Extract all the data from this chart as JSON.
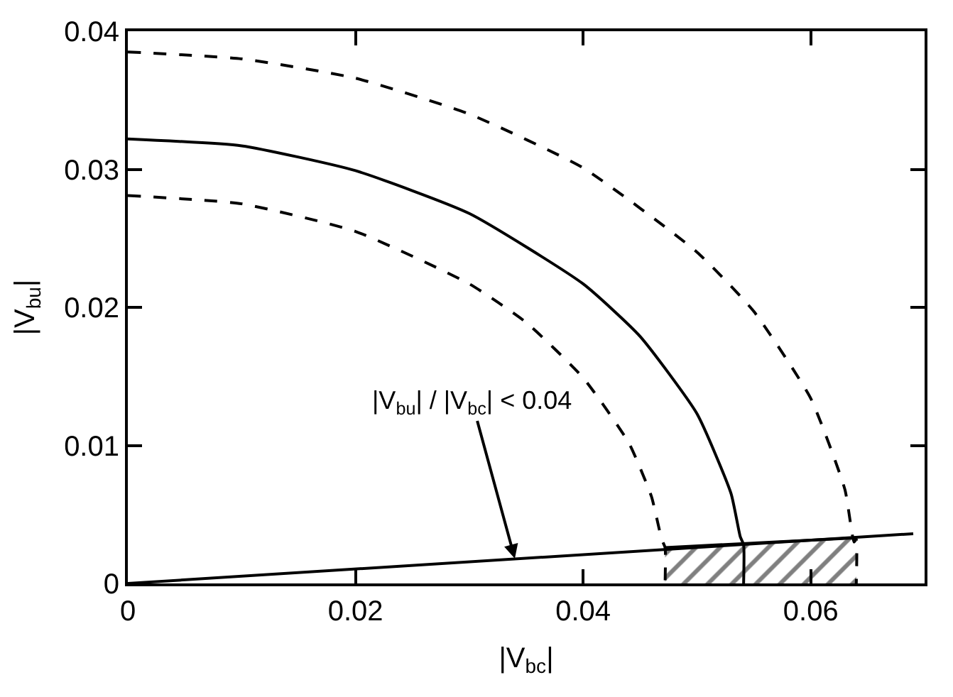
{
  "chart_data": {
    "type": "line",
    "xlabel": "|V$_{bc}$|",
    "ylabel": "|V$_{bu}$|",
    "xlim": [
      0,
      0.07
    ],
    "ylim": [
      0,
      0.04
    ],
    "xticks": [
      0,
      0.02,
      0.04,
      0.06
    ],
    "yticks": [
      0,
      0.01,
      0.02,
      0.03,
      0.04
    ],
    "marker": "none",
    "series": [
      {
        "color": "#000000",
        "line_style": "dashed",
        "x": [
          0,
          0.01,
          0.02,
          0.03,
          0.04,
          0.05,
          0.055,
          0.06,
          0.063,
          0.0638,
          0.064,
          0.064
        ],
        "values": [
          0.0385,
          0.038,
          0.0366,
          0.034,
          0.0301,
          0.024,
          0.0197,
          0.0134,
          0.0068,
          0.003,
          0.0032,
          0
        ]
      },
      {
        "color": "#000000",
        "line_style": "solid",
        "x": [
          0,
          0.01,
          0.02,
          0.03,
          0.04,
          0.045,
          0.05,
          0.053,
          0.0538,
          0.0541,
          0.0541
        ],
        "values": [
          0.0322,
          0.0317,
          0.0299,
          0.0268,
          0.0217,
          0.0179,
          0.0123,
          0.0065,
          0.0034,
          0.0028,
          0
        ]
      },
      {
        "color": "#000000",
        "line_style": "dashed",
        "x": [
          0,
          0.01,
          0.02,
          0.03,
          0.035,
          0.04,
          0.044,
          0.046,
          0.0469,
          0.0472,
          0.0472
        ],
        "values": [
          0.0281,
          0.0275,
          0.0255,
          0.0217,
          0.0189,
          0.0149,
          0.0102,
          0.0063,
          0.0032,
          0.0026,
          0
        ]
      },
      {
        "color": "#000000",
        "line_style": "solid",
        "x": [
          0,
          0.069
        ],
        "values": [
          0,
          0.0036
        ]
      },
      {
        "type": "area",
        "color": "#000000",
        "x": [
          0.0472,
          0.064
        ],
        "values": [
          0.0026,
          0.0033
        ]
      }
    ],
    "annotations": [
      {
        "text": "|V$_{bu}$| / |V$_{bc}$| < 0.04",
        "x": 0.034,
        "y": 0.0018
      }
    ]
  }
}
